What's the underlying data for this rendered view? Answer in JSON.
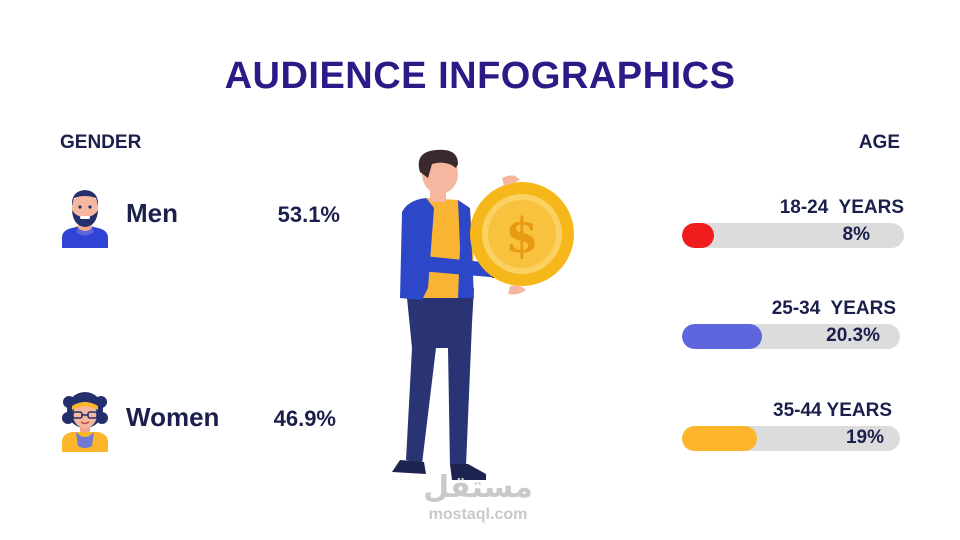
{
  "title": "AUDIENCE INFOGRAPHICS",
  "gender": {
    "label": "GENDER",
    "men": {
      "name": "Men",
      "percent_text": "53.1%",
      "icon": "man-avatar-icon"
    },
    "women": {
      "name": "Women",
      "percent_text": "46.9%",
      "icon": "woman-avatar-icon"
    }
  },
  "age": {
    "label": "AGE",
    "groups": [
      {
        "label": "18-24  YEARS",
        "percent_text": "8%",
        "value": 8,
        "color": "#ee1c1c"
      },
      {
        "label": "25-34  YEARS",
        "percent_text": "20.3%",
        "value": 20.3,
        "color": "#5d66dd"
      },
      {
        "label": "35-44 YEARS",
        "percent_text": "19%",
        "value": 19,
        "color": "#fdb52b"
      }
    ]
  },
  "illustration": {
    "icon": "man-holding-dollar-coin-icon"
  },
  "watermark": {
    "arabic": "مستقل",
    "latin": "mostaql.com"
  },
  "chart_data": {
    "type": "bar",
    "categories": [
      "18-24  YEARS",
      "25-34  YEARS",
      "35-44 YEARS"
    ],
    "values": [
      8,
      20.3,
      19
    ],
    "unit": "%",
    "gender": {
      "categories": [
        "Men",
        "Women"
      ],
      "values": [
        53.1,
        46.9
      ]
    }
  }
}
